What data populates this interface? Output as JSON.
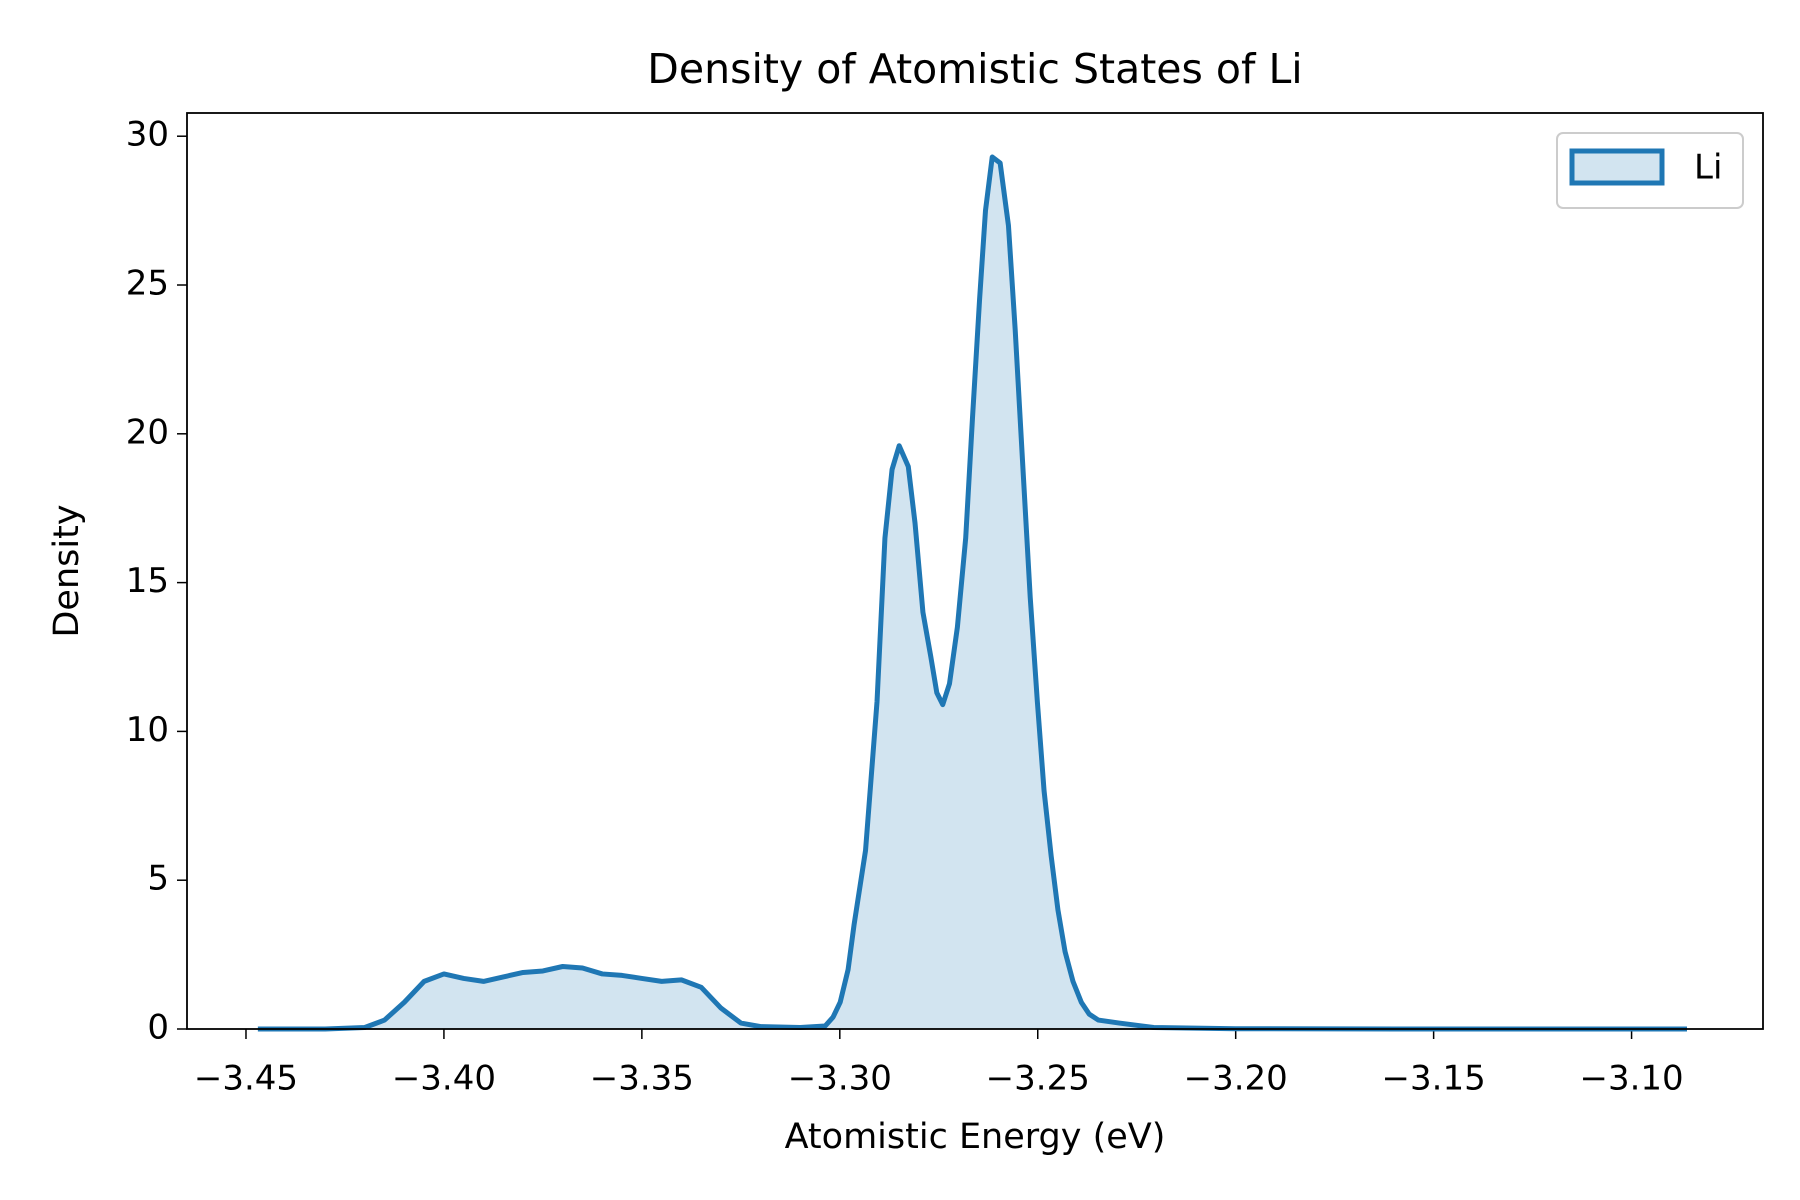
{
  "chart_data": {
    "type": "area",
    "title": "Density of Atomistic States of Li",
    "x_label": "Atomistic Energy (eV)",
    "y_label": "Density",
    "legend": "upper right",
    "x": [
      -3.447,
      -3.44,
      -3.43,
      -3.42,
      -3.415,
      -3.41,
      -3.405,
      -3.4,
      -3.395,
      -3.39,
      -3.385,
      -3.38,
      -3.375,
      -3.37,
      -3.365,
      -3.36,
      -3.355,
      -3.35,
      -3.345,
      -3.34,
      -3.335,
      -3.33,
      -3.325,
      -3.32,
      -3.31,
      -3.3037,
      -3.3017,
      -3.2999,
      -3.2979,
      -3.2964,
      -3.2935,
      -3.2906,
      -3.2886,
      -3.2868,
      -3.285,
      -3.2827,
      -3.281,
      -3.279,
      -3.277,
      -3.2755,
      -3.274,
      -3.2723,
      -3.2703,
      -3.2682,
      -3.2665,
      -3.2647,
      -3.2632,
      -3.2615,
      -3.2595,
      -3.2574,
      -3.2557,
      -3.2536,
      -3.2519,
      -3.2501,
      -3.2484,
      -3.2466,
      -3.2449,
      -3.2431,
      -3.2411,
      -3.239,
      -3.237,
      -3.2347,
      -3.2294,
      -3.2207,
      -3.2,
      -3.15,
      -3.1,
      -3.086
    ],
    "series": [
      {
        "name": "Li",
        "color": "#1f77b4",
        "values": [
          0,
          0,
          0,
          0.05,
          0.3,
          0.9,
          1.6,
          1.85,
          1.7,
          1.6,
          1.75,
          1.9,
          1.95,
          2.1,
          2.05,
          1.85,
          1.8,
          1.7,
          1.6,
          1.65,
          1.4,
          0.7,
          0.2,
          0.08,
          0.05,
          0.1,
          0.4,
          0.9,
          2,
          3.5,
          6,
          11,
          16.5,
          18.8,
          19.6,
          18.9,
          17,
          14,
          12.5,
          11.3,
          10.9,
          11.6,
          13.5,
          16.5,
          20.5,
          24.5,
          27.5,
          29.3,
          29.1,
          27,
          23.5,
          18.5,
          14.5,
          11,
          8,
          5.8,
          4,
          2.6,
          1.6,
          0.9,
          0.5,
          0.3,
          0.2,
          0.05,
          0.01,
          0,
          0,
          0
        ]
      }
    ],
    "xlim": [
      -3.4649,
      -3.0668
    ],
    "ylim": [
      0,
      30.78
    ],
    "xticks": [
      {
        "value": -3.45,
        "label": "−3.45"
      },
      {
        "value": -3.4,
        "label": "−3.40"
      },
      {
        "value": -3.35,
        "label": "−3.35"
      },
      {
        "value": -3.3,
        "label": "−3.30"
      },
      {
        "value": -3.25,
        "label": "−3.25"
      },
      {
        "value": -3.2,
        "label": "−3.20"
      },
      {
        "value": -3.15,
        "label": "−3.15"
      },
      {
        "value": -3.1,
        "label": "−3.10"
      }
    ],
    "yticks": [
      0,
      5,
      10,
      15,
      20,
      25,
      30
    ]
  }
}
